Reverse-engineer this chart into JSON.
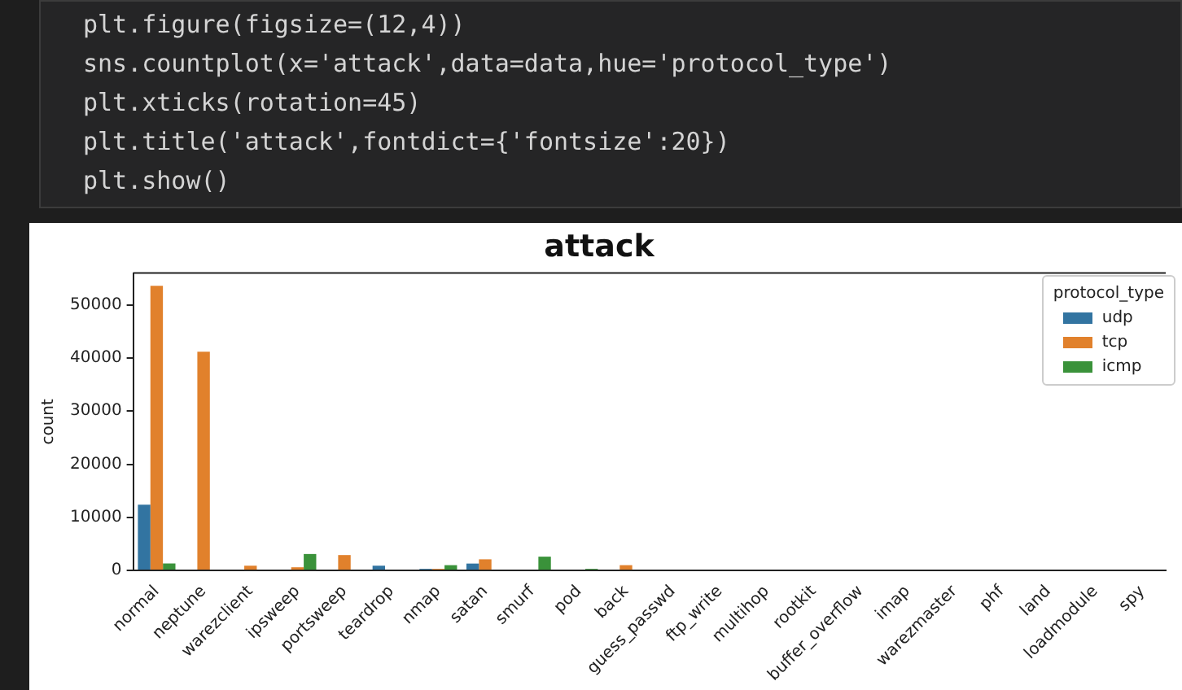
{
  "chart_data": {
    "type": "bar",
    "title": "attack",
    "xlabel": null,
    "ylabel": "count",
    "annotations": [
      "plt.figure(figsize=(12,4))",
      "sns.countplot(x='attack',data=data,hue='protocol_type')",
      "plt.xticks(rotation=45)",
      "plt.title('attack',fontdict={'fontsize':20})",
      "plt.show()"
    ],
    "categories": [
      "normal",
      "neptune",
      "warezclient",
      "ipsweep",
      "portsweep",
      "teardrop",
      "nmap",
      "satan",
      "smurf",
      "pod",
      "back",
      "guess_passwd",
      "ftp_write",
      "multihop",
      "rootkit",
      "buffer_overflow",
      "imap",
      "warezmaster",
      "phf",
      "land",
      "loadmodule",
      "spy"
    ],
    "series": [
      {
        "name": "udp",
        "color": "#3274a1",
        "values": [
          12400,
          null,
          null,
          null,
          null,
          900,
          300,
          1300,
          null,
          null,
          null,
          null,
          null,
          null,
          null,
          null,
          null,
          null,
          null,
          null,
          null,
          null
        ]
      },
      {
        "name": "tcp",
        "color": "#e1812c",
        "values": [
          53600,
          41200,
          900,
          600,
          2900,
          null,
          300,
          2100,
          null,
          null,
          1000,
          null,
          null,
          null,
          null,
          null,
          null,
          null,
          null,
          null,
          null,
          null
        ]
      },
      {
        "name": "icmp",
        "color": "#3a923a",
        "values": [
          1300,
          null,
          null,
          3100,
          null,
          null,
          1000,
          null,
          2600,
          300,
          null,
          null,
          null,
          null,
          null,
          null,
          null,
          null,
          null,
          null,
          null,
          null
        ]
      }
    ],
    "legend_title": "protocol_type",
    "legend": "top right",
    "ylim": [
      0,
      56000
    ],
    "yticks": [
      0,
      10000,
      20000,
      30000,
      40000,
      50000
    ],
    "grid": false
  }
}
